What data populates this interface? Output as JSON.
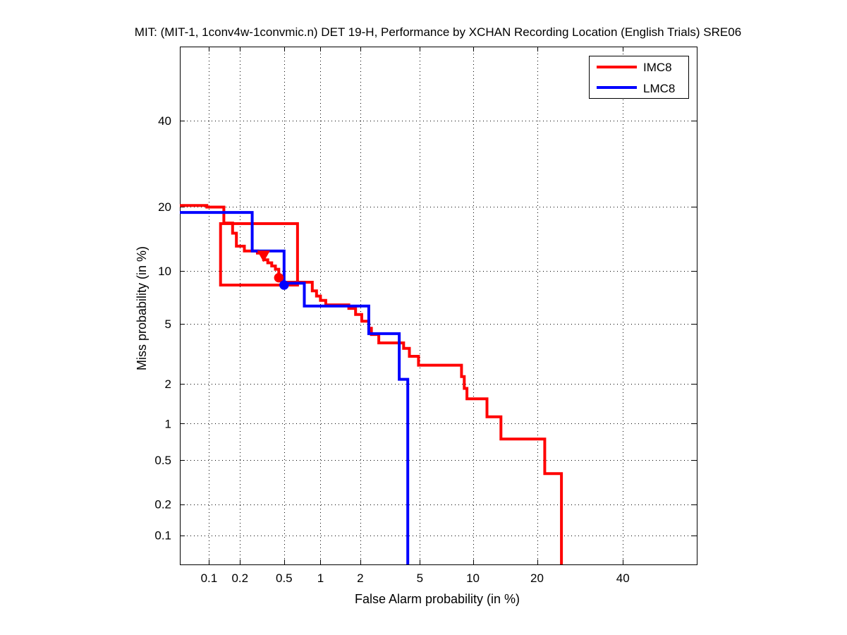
{
  "chart_data": {
    "type": "line",
    "title": "MIT: (MIT-1, 1conv4w-1convmic.n) DET 19-H,  Performance by XCHAN Recording Location (English Trials) SRE06",
    "xlabel": "False Alarm probability (in %)",
    "ylabel": "Miss probability (in %)",
    "x_scale": "probit",
    "y_scale": "probit",
    "xlim": [
      0.05,
      60
    ],
    "ylim": [
      0.05,
      60
    ],
    "x_ticks": [
      0.1,
      0.2,
      0.5,
      1,
      2,
      5,
      10,
      20,
      40
    ],
    "x_tick_labels": [
      "0.1",
      "0.2",
      "0.5",
      "1",
      "2",
      "5",
      "10",
      "20",
      "40"
    ],
    "y_ticks": [
      0.1,
      0.2,
      0.5,
      1,
      2,
      5,
      10,
      20,
      40
    ],
    "y_tick_labels": [
      "0.1",
      "0.2",
      "0.5",
      "1",
      "2",
      "5",
      "10",
      "20",
      "40"
    ],
    "grid": true,
    "legend_position": "top-right",
    "series": [
      {
        "name": "IMC8",
        "color": "#ff0000",
        "curve": [
          [
            0.05,
            20.2
          ],
          [
            0.095,
            20.2
          ],
          [
            0.095,
            19.9
          ],
          [
            0.14,
            19.9
          ],
          [
            0.14,
            17.0
          ],
          [
            0.17,
            17.0
          ],
          [
            0.17,
            15.3
          ],
          [
            0.185,
            15.3
          ],
          [
            0.185,
            13.3
          ],
          [
            0.22,
            13.3
          ],
          [
            0.22,
            12.6
          ],
          [
            0.29,
            12.6
          ],
          [
            0.29,
            12.3
          ],
          [
            0.33,
            12.3
          ],
          [
            0.33,
            11.4
          ],
          [
            0.36,
            11.4
          ],
          [
            0.36,
            11.0
          ],
          [
            0.39,
            11.0
          ],
          [
            0.39,
            10.6
          ],
          [
            0.42,
            10.6
          ],
          [
            0.42,
            10.2
          ],
          [
            0.45,
            10.2
          ],
          [
            0.45,
            9.4
          ],
          [
            0.48,
            9.4
          ],
          [
            0.48,
            8.7
          ],
          [
            0.86,
            8.7
          ],
          [
            0.86,
            7.8
          ],
          [
            0.93,
            7.8
          ],
          [
            0.93,
            7.3
          ],
          [
            1.0,
            7.3
          ],
          [
            1.0,
            6.9
          ],
          [
            1.1,
            6.9
          ],
          [
            1.1,
            6.5
          ],
          [
            1.65,
            6.5
          ],
          [
            1.65,
            6.2
          ],
          [
            1.85,
            6.2
          ],
          [
            1.85,
            5.7
          ],
          [
            2.05,
            5.7
          ],
          [
            2.05,
            5.2
          ],
          [
            2.3,
            5.2
          ],
          [
            2.3,
            4.7
          ],
          [
            2.4,
            4.7
          ],
          [
            2.4,
            4.3
          ],
          [
            2.7,
            4.3
          ],
          [
            2.7,
            3.8
          ],
          [
            3.95,
            3.8
          ],
          [
            3.95,
            3.5
          ],
          [
            4.3,
            3.5
          ],
          [
            4.3,
            3.1
          ],
          [
            4.9,
            3.1
          ],
          [
            4.9,
            2.7
          ],
          [
            8.7,
            2.7
          ],
          [
            8.7,
            2.25
          ],
          [
            9.0,
            2.25
          ],
          [
            9.0,
            1.85
          ],
          [
            9.3,
            1.85
          ],
          [
            9.3,
            1.55
          ],
          [
            11.8,
            1.55
          ],
          [
            11.8,
            1.13
          ],
          [
            13.8,
            1.13
          ],
          [
            13.8,
            0.75
          ],
          [
            21.5,
            0.75
          ],
          [
            21.5,
            0.38
          ],
          [
            25.0,
            0.38
          ],
          [
            25.0,
            0.05
          ]
        ],
        "confidence_box": {
          "fa_min": 0.13,
          "fa_max": 0.65,
          "miss_min": 8.4,
          "miss_max": 16.9
        },
        "operating_point_actual": {
          "fa": 0.45,
          "miss": 9.2,
          "marker": "circle"
        },
        "operating_point_min": {
          "fa": 0.33,
          "miss": 12.0,
          "marker": "triangle"
        }
      },
      {
        "name": "LMC8",
        "color": "#0000ff",
        "curve": [
          [
            0.05,
            18.9
          ],
          [
            0.26,
            18.9
          ],
          [
            0.26,
            12.6
          ],
          [
            0.5,
            12.6
          ],
          [
            0.5,
            8.6
          ],
          [
            0.74,
            8.6
          ],
          [
            0.74,
            6.4
          ],
          [
            2.3,
            6.4
          ],
          [
            2.3,
            4.35
          ],
          [
            3.7,
            4.35
          ],
          [
            3.7,
            2.15
          ],
          [
            4.2,
            2.15
          ],
          [
            4.2,
            0.05
          ]
        ],
        "operating_point_actual": {
          "fa": 0.5,
          "miss": 8.4,
          "marker": "circle"
        }
      }
    ]
  }
}
